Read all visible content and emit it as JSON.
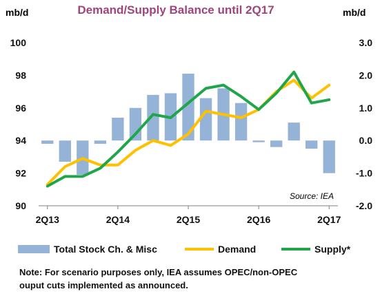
{
  "chart_data": {
    "type": "bar+line",
    "title": "Demand/Supply Balance until 2Q17",
    "left_axis": {
      "unit": "mb/d",
      "ylim": [
        90,
        100
      ],
      "ticks": [
        "90",
        "92",
        "94",
        "96",
        "98",
        "100"
      ]
    },
    "right_axis": {
      "unit": "mb/d",
      "ylim": [
        -2.0,
        3.0
      ],
      "ticks": [
        "-2.0",
        "-1.0",
        "0.0",
        "1.0",
        "2.0",
        "3.0"
      ]
    },
    "x_tick_labels": [
      "2Q13",
      "2Q14",
      "2Q15",
      "2Q16",
      "2Q17"
    ],
    "periods": [
      "2Q13",
      "3Q13",
      "4Q13",
      "1Q14",
      "2Q14",
      "3Q14",
      "4Q14",
      "1Q15",
      "2Q15",
      "3Q15",
      "4Q15",
      "1Q16",
      "2Q16",
      "3Q16",
      "4Q16",
      "1Q17",
      "2Q17"
    ],
    "series": [
      {
        "name": "Total Stock Ch. & Misc",
        "kind": "bar",
        "axis": "right",
        "color": "#95B3D7",
        "values": [
          -0.1,
          -0.65,
          -1.05,
          -0.1,
          0.7,
          1.0,
          1.4,
          1.45,
          2.05,
          1.3,
          1.6,
          1.15,
          -0.05,
          -0.2,
          0.55,
          -0.25,
          -1.0
        ]
      },
      {
        "name": "Demand",
        "kind": "line",
        "axis": "left",
        "color": "#FFC000",
        "values": [
          91.3,
          92.4,
          92.9,
          92.5,
          92.5,
          93.4,
          94.0,
          93.7,
          94.4,
          95.8,
          95.6,
          95.4,
          95.9,
          97.0,
          97.7,
          96.6,
          97.4
        ]
      },
      {
        "name": "Supply*",
        "kind": "line",
        "axis": "left",
        "color": "#1FA64A",
        "values": [
          91.2,
          91.8,
          91.8,
          92.3,
          93.3,
          94.4,
          95.6,
          95.4,
          96.3,
          97.2,
          97.4,
          96.7,
          95.9,
          96.9,
          98.2,
          96.3,
          96.5
        ]
      }
    ],
    "source": "Source: IEA",
    "legend_position": "bottom",
    "grid": false
  },
  "note": {
    "line1": "Note: For scenario purposes only, IEA assumes OPEC/non-OPEC",
    "line2": "ouput cuts implemented as announced."
  },
  "colors": {
    "title": "#A0457A",
    "axis_text": "#111111",
    "bar": "#95B3D7",
    "demand": "#FFC000",
    "supply": "#1FA64A"
  }
}
